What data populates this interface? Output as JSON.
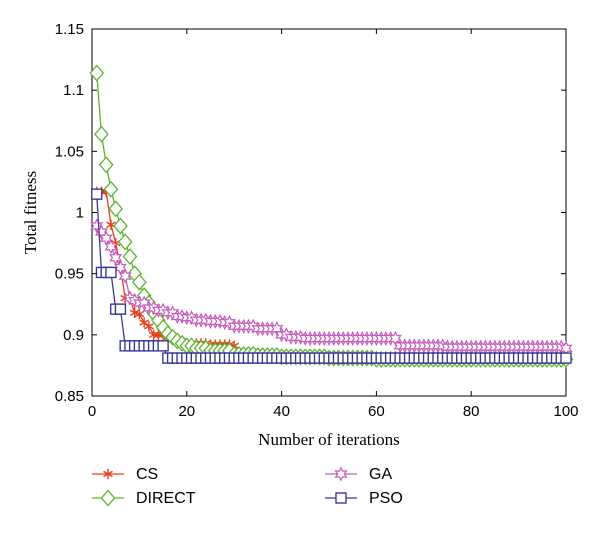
{
  "chart_data": {
    "type": "line",
    "xlabel": "Number of iterations",
    "ylabel": "Total fitness",
    "xlim": [
      0,
      100
    ],
    "ylim": [
      0.85,
      1.15
    ],
    "xticks": [
      0,
      20,
      40,
      60,
      80,
      100
    ],
    "yticks": [
      0.85,
      0.9,
      0.95,
      1,
      1.05,
      1.1,
      1.15
    ],
    "ytick_labels": [
      "0.85",
      "0.9",
      "0.95",
      "1",
      "1.05",
      "1.1",
      "1.15"
    ],
    "grid": false,
    "legend_placement": "below",
    "series": [
      {
        "name": "CS",
        "color": "#e8401c",
        "marker": "asterisk",
        "points": [
          [
            1,
            1.017
          ],
          [
            2,
            1.017
          ],
          [
            3,
            1.017
          ],
          [
            4,
            0.99
          ],
          [
            5,
            0.975
          ],
          [
            6,
            0.955
          ],
          [
            7,
            0.93
          ],
          [
            8,
            0.93
          ],
          [
            9,
            0.918
          ],
          [
            10,
            0.917
          ],
          [
            11,
            0.91
          ],
          [
            12,
            0.907
          ],
          [
            13,
            0.9
          ],
          [
            14,
            0.9
          ],
          [
            15,
            0.9
          ],
          [
            16,
            0.898
          ],
          [
            18,
            0.895
          ],
          [
            20,
            0.893
          ],
          [
            25,
            0.892
          ],
          [
            30,
            0.891
          ],
          [
            31,
            0.885
          ],
          [
            35,
            0.884
          ],
          [
            40,
            0.883
          ],
          [
            50,
            0.882
          ],
          [
            60,
            0.881
          ],
          [
            70,
            0.881
          ],
          [
            80,
            0.881
          ],
          [
            90,
            0.881
          ],
          [
            100,
            0.881
          ]
        ]
      },
      {
        "name": "DIRECT",
        "color": "#5db32e",
        "marker": "diamond",
        "points": [
          [
            1,
            1.114
          ],
          [
            2,
            1.064
          ],
          [
            3,
            1.039
          ],
          [
            4,
            1.019
          ],
          [
            5,
            1.003
          ],
          [
            6,
            0.989
          ],
          [
            7,
            0.976
          ],
          [
            8,
            0.964
          ],
          [
            9,
            0.95
          ],
          [
            10,
            0.943
          ],
          [
            11,
            0.932
          ],
          [
            12,
            0.926
          ],
          [
            13,
            0.918
          ],
          [
            14,
            0.912
          ],
          [
            15,
            0.906
          ],
          [
            16,
            0.901
          ],
          [
            17,
            0.898
          ],
          [
            18,
            0.895
          ],
          [
            19,
            0.893
          ],
          [
            20,
            0.891
          ],
          [
            22,
            0.889
          ],
          [
            25,
            0.887
          ],
          [
            30,
            0.884
          ],
          [
            35,
            0.883
          ],
          [
            40,
            0.882
          ],
          [
            50,
            0.881
          ],
          [
            60,
            0.88
          ],
          [
            70,
            0.88
          ],
          [
            80,
            0.88
          ],
          [
            90,
            0.88
          ],
          [
            100,
            0.88
          ]
        ]
      },
      {
        "name": "GA",
        "color": "#c65bbd",
        "marker": "star",
        "points": [
          [
            1,
            0.989
          ],
          [
            2,
            0.984
          ],
          [
            3,
            0.979
          ],
          [
            4,
            0.972
          ],
          [
            5,
            0.963
          ],
          [
            6,
            0.955
          ],
          [
            7,
            0.948
          ],
          [
            8,
            0.93
          ],
          [
            9,
            0.928
          ],
          [
            10,
            0.926
          ],
          [
            12,
            0.922
          ],
          [
            14,
            0.92
          ],
          [
            16,
            0.918
          ],
          [
            18,
            0.915
          ],
          [
            20,
            0.914
          ],
          [
            22,
            0.912
          ],
          [
            25,
            0.911
          ],
          [
            28,
            0.91
          ],
          [
            30,
            0.907
          ],
          [
            35,
            0.905
          ],
          [
            40,
            0.9
          ],
          [
            42,
            0.898
          ],
          [
            45,
            0.897
          ],
          [
            50,
            0.897
          ],
          [
            55,
            0.897
          ],
          [
            60,
            0.897
          ],
          [
            65,
            0.891
          ],
          [
            70,
            0.891
          ],
          [
            75,
            0.89
          ],
          [
            80,
            0.89
          ],
          [
            85,
            0.89
          ],
          [
            90,
            0.89
          ],
          [
            95,
            0.89
          ],
          [
            100,
            0.889
          ]
        ]
      },
      {
        "name": "PSO",
        "color": "#3c3a96",
        "marker": "square",
        "points": [
          [
            1,
            1.015
          ],
          [
            2,
            0.951
          ],
          [
            3,
            0.951
          ],
          [
            4,
            0.951
          ],
          [
            5,
            0.921
          ],
          [
            6,
            0.921
          ],
          [
            7,
            0.891
          ],
          [
            8,
            0.891
          ],
          [
            9,
            0.891
          ],
          [
            10,
            0.891
          ],
          [
            11,
            0.891
          ],
          [
            12,
            0.891
          ],
          [
            13,
            0.891
          ],
          [
            14,
            0.891
          ],
          [
            15,
            0.891
          ],
          [
            16,
            0.881
          ],
          [
            18,
            0.881
          ],
          [
            20,
            0.881
          ],
          [
            25,
            0.881
          ],
          [
            30,
            0.881
          ],
          [
            40,
            0.881
          ],
          [
            50,
            0.881
          ],
          [
            60,
            0.881
          ],
          [
            70,
            0.881
          ],
          [
            80,
            0.881
          ],
          [
            90,
            0.881
          ],
          [
            100,
            0.881
          ]
        ]
      }
    ]
  }
}
